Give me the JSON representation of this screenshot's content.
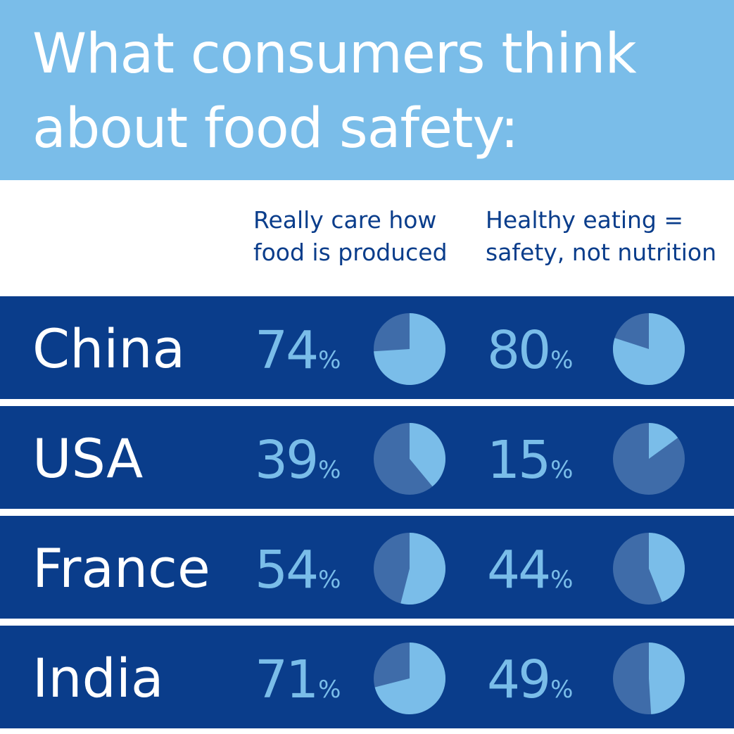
{
  "title": {
    "line1": "What consumers think",
    "line2": "about food safety:"
  },
  "columns": [
    {
      "line1": "Really care how",
      "line2": "food is produced"
    },
    {
      "line1": "Healthy eating =",
      "line2": "safety, not nutrition"
    }
  ],
  "percent_sign": "%",
  "colors": {
    "header_bg": "#7abde9",
    "row_bg": "#0a3d8b",
    "pie_highlight": "#7abde9",
    "pie_base": "#3f6ca9",
    "text_dark": "#0a3d8b"
  },
  "chart_data": {
    "type": "pie",
    "categories": [
      "China",
      "USA",
      "France",
      "India"
    ],
    "series": [
      {
        "name": "Really care how food is produced",
        "values": [
          74,
          39,
          54,
          71
        ]
      },
      {
        "name": "Healthy eating = safety, not nutrition",
        "values": [
          80,
          15,
          44,
          49
        ]
      }
    ]
  }
}
